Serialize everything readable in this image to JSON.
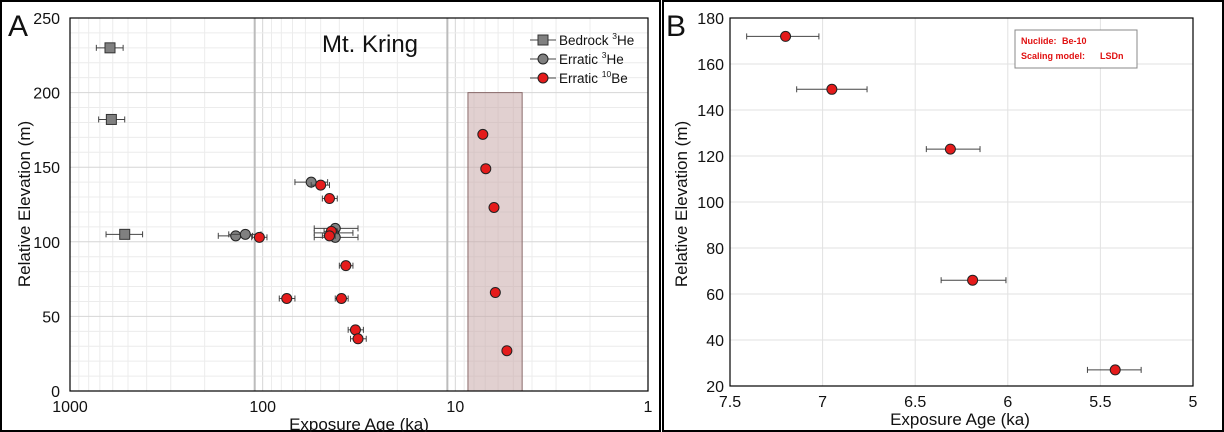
{
  "chart_data": [
    {
      "type": "scatter",
      "panel": "A",
      "title": "Mt. Kring",
      "xlabel": "Exposure Age (ka)",
      "ylabel": "Relative Elevation (m)",
      "x_scale": "log",
      "x_reversed": true,
      "xlim": [
        1000,
        1
      ],
      "ylim": [
        0,
        250
      ],
      "x_ticks": [
        1000,
        100,
        10,
        1
      ],
      "x_tick_labels": [
        "1000",
        "100",
        "10",
        "1"
      ],
      "y_ticks": [
        0,
        50,
        100,
        150,
        200,
        250
      ],
      "y_tick_labels": [
        "0",
        "50",
        "100",
        "150",
        "200",
        "250"
      ],
      "grid": true,
      "legend_position": "top-right",
      "shaded_region": {
        "x": [
          8.6,
          4.5
        ],
        "y": [
          0,
          200
        ],
        "color": "#c9a9a9"
      },
      "vertical_lines": [
        110,
        11
      ],
      "series": [
        {
          "name_main": "Bedrock ",
          "name_iso": "3",
          "name_el": "He",
          "marker": "square",
          "color": "#808080",
          "points": [
            {
              "x": 620,
              "y": 230,
              "xerr": [
                530,
                730
              ]
            },
            {
              "x": 610,
              "y": 182,
              "xerr": [
                520,
                710
              ]
            },
            {
              "x": 520,
              "y": 105,
              "xerr": [
                420,
                650
              ]
            }
          ]
        },
        {
          "name_main": "Erratic ",
          "name_iso": "3",
          "name_el": "He",
          "marker": "circle",
          "color": "#808080",
          "points": [
            {
              "x": 56,
              "y": 140,
              "xerr": [
                46,
                68
              ]
            },
            {
              "x": 42,
              "y": 109,
              "xerr": [
                32,
                54
              ]
            },
            {
              "x": 43,
              "y": 106,
              "xerr": [
                34,
                54
              ]
            },
            {
              "x": 42,
              "y": 103,
              "xerr": [
                32,
                54
              ]
            },
            {
              "x": 138,
              "y": 104,
              "xerr": [
                113,
                170
              ]
            },
            {
              "x": 123,
              "y": 105,
              "xerr": [
                102,
                150
              ]
            }
          ]
        },
        {
          "name_main": "Erratic ",
          "name_iso": "10",
          "name_el": "Be",
          "marker": "circle",
          "color": "#e51b1b",
          "points": [
            {
              "x": 7.2,
              "y": 172,
              "xerr": [
                7.4,
                7.0
              ]
            },
            {
              "x": 6.95,
              "y": 149,
              "xerr": [
                7.15,
                6.75
              ]
            },
            {
              "x": 6.3,
              "y": 123,
              "xerr": [
                6.45,
                6.15
              ]
            },
            {
              "x": 6.2,
              "y": 66,
              "xerr": [
                6.35,
                6.0
              ]
            },
            {
              "x": 5.4,
              "y": 27,
              "xerr": [
                5.6,
                5.25
              ]
            },
            {
              "x": 50,
              "y": 138,
              "xerr": [
                45,
                56
              ]
            },
            {
              "x": 45,
              "y": 129,
              "xerr": [
                41,
                49
              ]
            },
            {
              "x": 44,
              "y": 107,
              "xerr": [
                41,
                48
              ]
            },
            {
              "x": 45,
              "y": 104,
              "xerr": [
                42,
                49
              ]
            },
            {
              "x": 104,
              "y": 103,
              "xerr": [
                95,
                114
              ]
            },
            {
              "x": 37,
              "y": 84,
              "xerr": [
                34,
                40
              ]
            },
            {
              "x": 75,
              "y": 62,
              "xerr": [
                68,
                82
              ]
            },
            {
              "x": 39,
              "y": 62,
              "xerr": [
                36,
                42
              ]
            },
            {
              "x": 33,
              "y": 41,
              "xerr": [
                30,
                36
              ]
            },
            {
              "x": 32,
              "y": 35,
              "xerr": [
                29,
                35
              ]
            }
          ]
        }
      ]
    },
    {
      "type": "scatter",
      "panel": "B",
      "xlabel": "Exposure Age (ka)",
      "ylabel": "Relative Elevation (m)",
      "x_reversed": true,
      "xlim": [
        7.5,
        5
      ],
      "ylim": [
        20,
        180
      ],
      "x_ticks": [
        7.5,
        7,
        6.5,
        6,
        5.5,
        5
      ],
      "x_tick_labels": [
        "7.5",
        "7",
        "6.5",
        "6",
        "5.5",
        "5"
      ],
      "y_ticks": [
        20,
        40,
        60,
        80,
        100,
        120,
        140,
        160,
        180
      ],
      "y_tick_labels": [
        "20",
        "40",
        "60",
        "80",
        "100",
        "120",
        "140",
        "160",
        "180"
      ],
      "grid": true,
      "annotation": {
        "nuclide_label": "Nuclide:",
        "nuclide_value": "Be-10",
        "scaling_label": "Scaling model:",
        "scaling_value": "LSDn"
      },
      "series": [
        {
          "color": "#e51b1b",
          "marker": "circle",
          "points": [
            {
              "x": 7.2,
              "y": 172,
              "xerr": [
                7.41,
                7.02
              ]
            },
            {
              "x": 6.95,
              "y": 149,
              "xerr": [
                7.14,
                6.76
              ]
            },
            {
              "x": 6.31,
              "y": 123,
              "xerr": [
                6.44,
                6.15
              ]
            },
            {
              "x": 6.19,
              "y": 66,
              "xerr": [
                6.36,
                6.01
              ]
            },
            {
              "x": 5.42,
              "y": 27,
              "xerr": [
                5.57,
                5.28
              ]
            }
          ]
        }
      ]
    }
  ]
}
